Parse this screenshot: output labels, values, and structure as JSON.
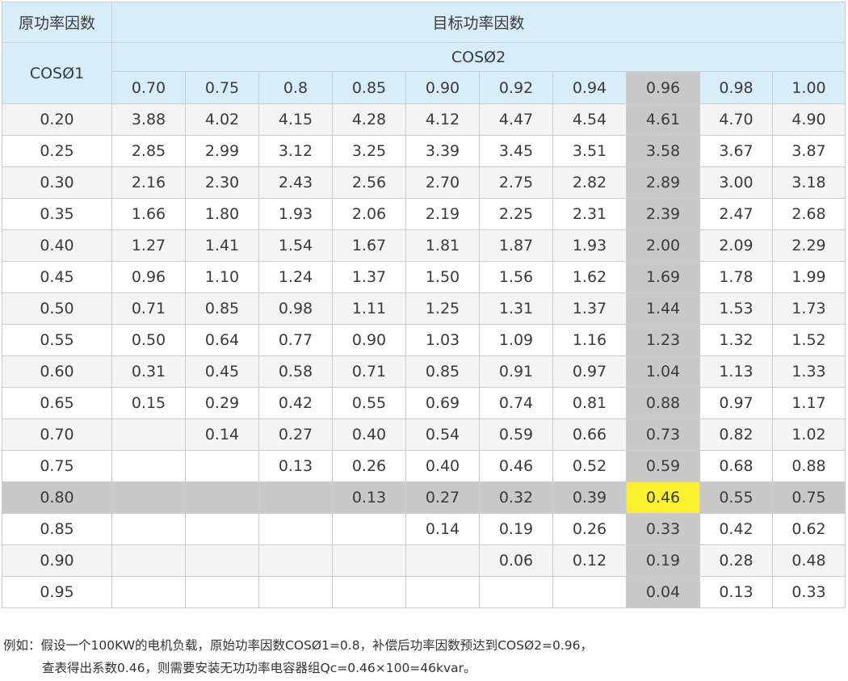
{
  "header": {
    "original_pf_label": "原功率因数",
    "target_pf_label": "目标功率因数",
    "cos1_label": "COSØ1",
    "cos2_label": "COSØ2"
  },
  "columns": [
    "0.70",
    "0.75",
    "0.8",
    "0.85",
    "0.90",
    "0.92",
    "0.94",
    "0.96",
    "0.98",
    "1.00"
  ],
  "rows": [
    {
      "label": "0.20",
      "values": [
        "3.88",
        "4.02",
        "4.15",
        "4.28",
        "4.12",
        "4.47",
        "4.54",
        "4.61",
        "4.70",
        "4.90"
      ]
    },
    {
      "label": "0.25",
      "values": [
        "2.85",
        "2.99",
        "3.12",
        "3.25",
        "3.39",
        "3.45",
        "3.51",
        "3.58",
        "3.67",
        "3.87"
      ]
    },
    {
      "label": "0.30",
      "values": [
        "2.16",
        "2.30",
        "2.43",
        "2.56",
        "2.70",
        "2.75",
        "2.82",
        "2.89",
        "3.00",
        "3.18"
      ]
    },
    {
      "label": "0.35",
      "values": [
        "1.66",
        "1.80",
        "1.93",
        "2.06",
        "2.19",
        "2.25",
        "2.31",
        "2.39",
        "2.47",
        "2.68"
      ]
    },
    {
      "label": "0.40",
      "values": [
        "1.27",
        "1.41",
        "1.54",
        "1.67",
        "1.81",
        "1.87",
        "1.93",
        "2.00",
        "2.09",
        "2.29"
      ]
    },
    {
      "label": "0.45",
      "values": [
        "0.96",
        "1.10",
        "1.24",
        "1.37",
        "1.50",
        "1.56",
        "1.62",
        "1.69",
        "1.78",
        "1.99"
      ]
    },
    {
      "label": "0.50",
      "values": [
        "0.71",
        "0.85",
        "0.98",
        "1.11",
        "1.25",
        "1.31",
        "1.37",
        "1.44",
        "1.53",
        "1.73"
      ]
    },
    {
      "label": "0.55",
      "values": [
        "0.50",
        "0.64",
        "0.77",
        "0.90",
        "1.03",
        "1.09",
        "1.16",
        "1.23",
        "1.32",
        "1.52"
      ]
    },
    {
      "label": "0.60",
      "values": [
        "0.31",
        "0.45",
        "0.58",
        "0.71",
        "0.85",
        "0.91",
        "0.97",
        "1.04",
        "1.13",
        "1.33"
      ]
    },
    {
      "label": "0.65",
      "values": [
        "0.15",
        "0.29",
        "0.42",
        "0.55",
        "0.69",
        "0.74",
        "0.81",
        "0.88",
        "0.97",
        "1.17"
      ]
    },
    {
      "label": "0.70",
      "values": [
        "",
        "0.14",
        "0.27",
        "0.40",
        "0.54",
        "0.59",
        "0.66",
        "0.73",
        "0.82",
        "1.02"
      ]
    },
    {
      "label": "0.75",
      "values": [
        "",
        "",
        "0.13",
        "0.26",
        "0.40",
        "0.46",
        "0.52",
        "0.59",
        "0.68",
        "0.88"
      ]
    },
    {
      "label": "0.80",
      "values": [
        "",
        "",
        "",
        "0.13",
        "0.27",
        "0.32",
        "0.39",
        "0.46",
        "0.55",
        "0.75"
      ]
    },
    {
      "label": "0.85",
      "values": [
        "",
        "",
        "",
        "",
        "0.14",
        "0.19",
        "0.26",
        "0.33",
        "0.42",
        "0.62"
      ]
    },
    {
      "label": "0.90",
      "values": [
        "",
        "",
        "",
        "",
        "",
        "0.06",
        "0.12",
        "0.19",
        "0.28",
        "0.48"
      ]
    },
    {
      "label": "0.95",
      "values": [
        "",
        "",
        "",
        "",
        "",
        "",
        "",
        "0.04",
        "0.13",
        "0.33"
      ]
    }
  ],
  "highlight": {
    "row_color": "#c8c8c8",
    "col_color": "#c8c8c8",
    "cell_color": "#fbf22d",
    "header_color": "#d7eef8"
  },
  "note": {
    "line1": "例如：假设一个100KW的电机负载，原始功率因数COSØ1=0.8，补偿后功率因数预达到COSØ2=0.96，",
    "line2": "查表得出系数0.46，则需要安装无功功率电容器组Qc=0.46×100=46kvar。"
  }
}
